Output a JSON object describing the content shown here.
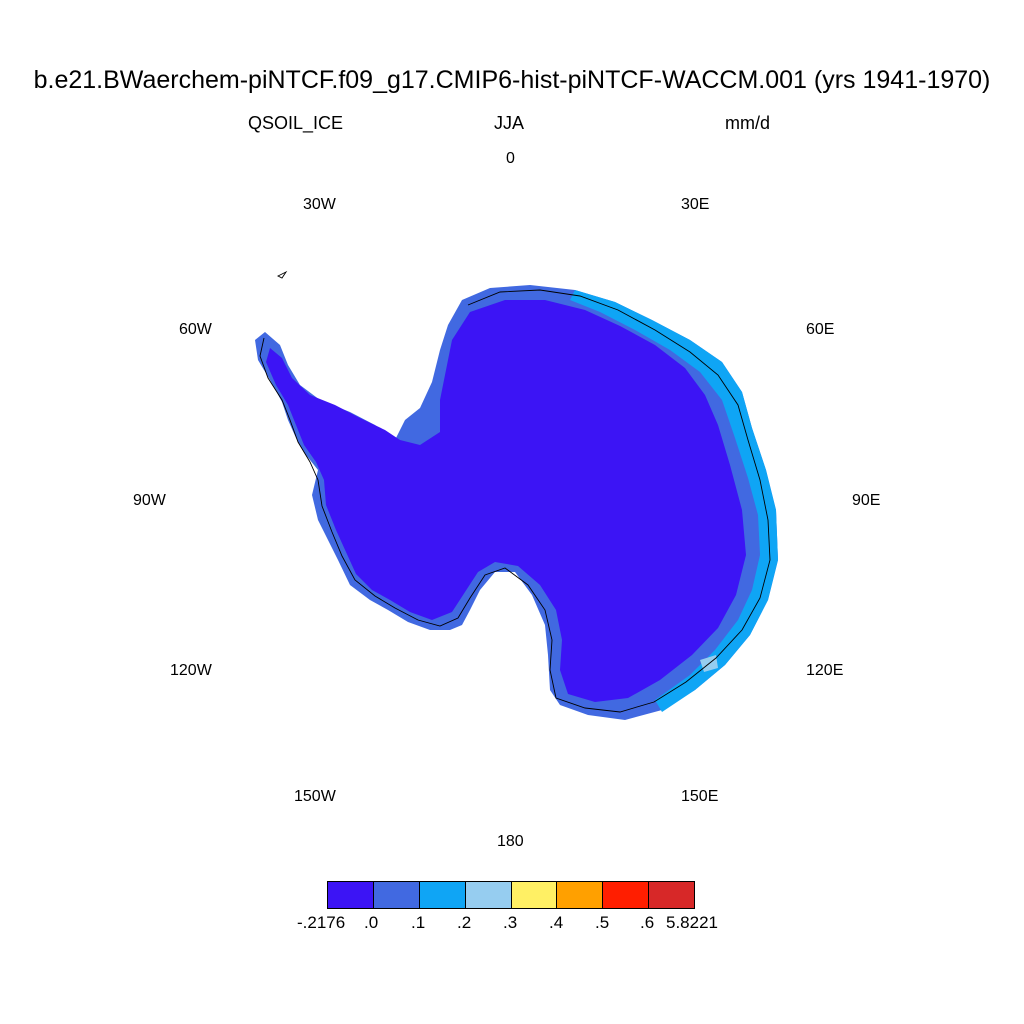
{
  "header": {
    "title": "b.e21.BWaerchem-piNTCF.f09_g17.CMIP6-hist-piNTCF-WACCM.001 (yrs 1941-1970)",
    "variable": "QSOIL_ICE",
    "season": "JJA",
    "units": "mm/d"
  },
  "longitude_labels": [
    "0",
    "30E",
    "60E",
    "90E",
    "120E",
    "150E",
    "180",
    "150W",
    "120W",
    "90W",
    "60W",
    "30W"
  ],
  "colorbar": {
    "labels": [
      "-.2176",
      ".0",
      ".1",
      ".2",
      ".3",
      ".4",
      ".5",
      ".6",
      "5.8221"
    ],
    "colors": [
      "#3c14f5",
      "#4169e1",
      "#0fa5f5",
      "#96cdf0",
      "#fff064",
      "#ffa000",
      "#ff1e00",
      "#d72828"
    ]
  },
  "map": {
    "projection": "south polar stereographic",
    "region": "Antarctica",
    "dominant_color": "#3c14f5",
    "coastal_colors": [
      "#4169e1",
      "#0fa5f5",
      "#96cdf0"
    ]
  }
}
